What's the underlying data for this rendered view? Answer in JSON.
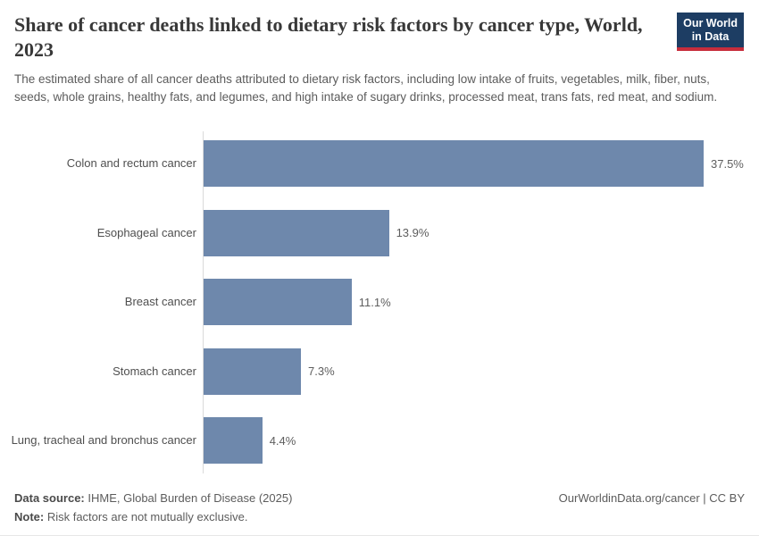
{
  "header": {
    "title": "Share of cancer deaths linked to dietary risk factors by cancer type, World, 2023",
    "subtitle": "The estimated share of all cancer deaths attributed to dietary risk factors, including low intake of fruits, vegetables, milk, fiber, nuts, seeds, whole grains, healthy fats, and legumes, and high intake of sugary drinks, processed meat, trans fats, red meat, and sodium.",
    "logo": {
      "line1": "Our World",
      "line2": "in Data"
    }
  },
  "chart_data": {
    "type": "bar",
    "orientation": "horizontal",
    "title": "Share of cancer deaths linked to dietary risk factors by cancer type, World, 2023",
    "categories": [
      "Colon and rectum cancer",
      "Esophageal cancer",
      "Breast cancer",
      "Stomach cancer",
      "Lung, tracheal and bronchus cancer"
    ],
    "values": [
      37.5,
      13.9,
      11.1,
      7.3,
      4.4
    ],
    "value_labels": [
      "37.5%",
      "13.9%",
      "11.1%",
      "7.3%",
      "4.4%"
    ],
    "unit": "%",
    "xlim": [
      0,
      37.5
    ],
    "grid": false,
    "legend": "none",
    "bar_color": "#6e88ac"
  },
  "footer": {
    "data_source_label": "Data source:",
    "data_source_text": " IHME, Global Burden of Disease (2025)",
    "note_label": "Note:",
    "note_text": " Risk factors are not mutually exclusive.",
    "attribution": "OurWorldinData.org/cancer | CC BY"
  }
}
